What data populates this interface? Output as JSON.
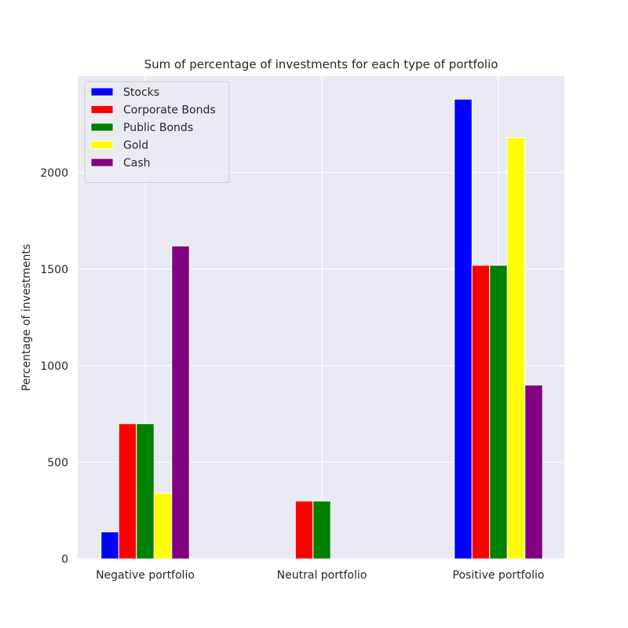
{
  "chart_data": {
    "type": "bar",
    "title": "Sum of percentage of investments for each type of portfolio",
    "xlabel": "",
    "ylabel": "Percentage of investments",
    "categories": [
      "Negative portfolio",
      "Neutral portfolio",
      "Positive portfolio"
    ],
    "series": [
      {
        "name": "Stocks",
        "color": "#0000ff",
        "values": [
          140,
          0,
          2380
        ]
      },
      {
        "name": "Corporate Bonds",
        "color": "#ff0000",
        "values": [
          700,
          300,
          1520
        ]
      },
      {
        "name": "Public Bonds",
        "color": "#008000",
        "values": [
          700,
          300,
          1520
        ]
      },
      {
        "name": "Gold",
        "color": "#ffff00",
        "values": [
          340,
          0,
          2180
        ]
      },
      {
        "name": "Cash",
        "color": "#800080",
        "values": [
          1620,
          0,
          900
        ]
      }
    ],
    "yticks": [
      0,
      500,
      1000,
      1500,
      2000
    ],
    "ylim": [
      0,
      2499
    ],
    "legend_position": "top-left",
    "grid": true,
    "background_color": "#eaeaf2"
  }
}
